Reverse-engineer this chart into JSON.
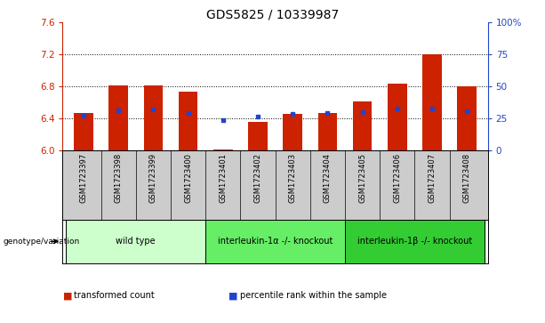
{
  "title": "GDS5825 / 10339987",
  "samples": [
    "GSM1723397",
    "GSM1723398",
    "GSM1723399",
    "GSM1723400",
    "GSM1723401",
    "GSM1723402",
    "GSM1723403",
    "GSM1723404",
    "GSM1723405",
    "GSM1723406",
    "GSM1723407",
    "GSM1723408"
  ],
  "red_values": [
    6.47,
    6.81,
    6.81,
    6.73,
    6.01,
    6.36,
    6.46,
    6.47,
    6.61,
    6.84,
    7.2,
    6.8
  ],
  "blue_values": [
    6.43,
    6.5,
    6.51,
    6.47,
    6.38,
    6.42,
    6.46,
    6.47,
    6.48,
    6.52,
    6.52,
    6.49
  ],
  "ylim_left": [
    6.0,
    7.6
  ],
  "ylim_right": [
    0,
    100
  ],
  "yticks_left": [
    6.0,
    6.4,
    6.8,
    7.2,
    7.6
  ],
  "yticks_right": [
    0,
    25,
    50,
    75,
    100
  ],
  "ytick_labels_right": [
    "0",
    "25",
    "50",
    "75",
    "100%"
  ],
  "grid_values": [
    6.4,
    6.8,
    7.2
  ],
  "bar_bottom": 6.0,
  "genotype_groups": [
    {
      "label": "wild type",
      "start": 0,
      "end": 3,
      "color": "#ccffcc"
    },
    {
      "label": "interleukin-1α -/- knockout",
      "start": 4,
      "end": 7,
      "color": "#66ee66"
    },
    {
      "label": "interleukin-1β -/- knockout",
      "start": 8,
      "end": 11,
      "color": "#33cc33"
    }
  ],
  "red_color": "#cc2200",
  "blue_color": "#2244cc",
  "bar_width": 0.55,
  "ylabel_left_color": "#cc2200",
  "ylabel_right_color": "#2244cc",
  "title_fontsize": 10,
  "legend_items": [
    {
      "color": "#cc2200",
      "label": "transformed count"
    },
    {
      "color": "#2244cc",
      "label": "percentile rank within the sample"
    }
  ],
  "genotype_label": "genotype/variation",
  "bg_color": "#cccccc"
}
